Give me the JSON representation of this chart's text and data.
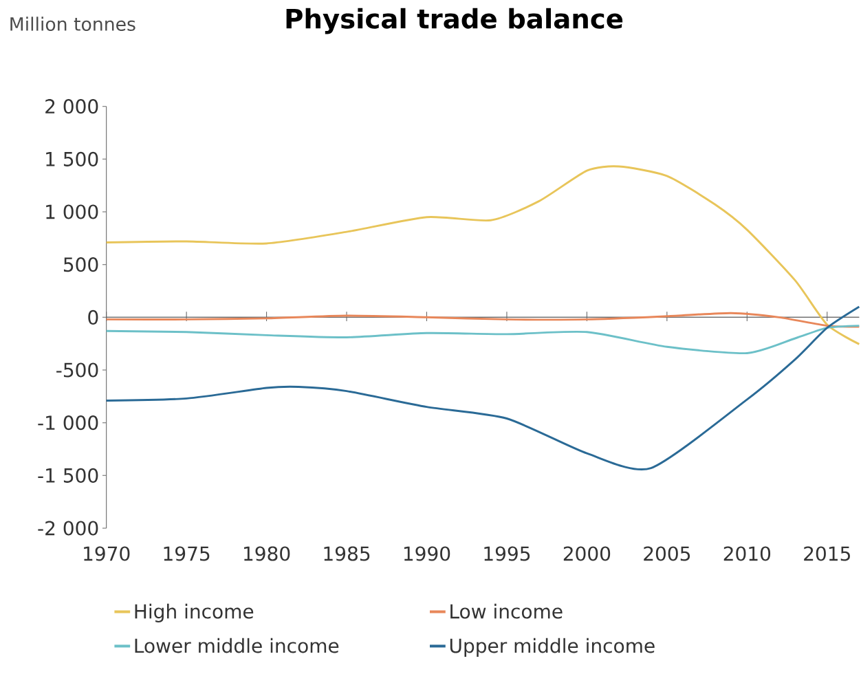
{
  "chart_data": {
    "type": "line",
    "title": "Physical trade balance",
    "ylabel": "Million tonnes",
    "xlim": [
      1970,
      2017
    ],
    "xticks": [
      1970,
      1975,
      1980,
      1985,
      1990,
      1995,
      2000,
      2005,
      2010,
      2015
    ],
    "ylim": [
      -2000,
      2000
    ],
    "yticks": [
      {
        "value": 2000,
        "label": "2 000"
      },
      {
        "value": 1500,
        "label": "1 500"
      },
      {
        "value": 1000,
        "label": "1 000"
      },
      {
        "value": 500,
        "label": "500"
      },
      {
        "value": 0,
        "label": "0"
      },
      {
        "value": -500,
        "label": "-500"
      },
      {
        "value": -1000,
        "label": "-1 000"
      },
      {
        "value": -1500,
        "label": "-1 500"
      },
      {
        "value": -2000,
        "label": "-2 000"
      }
    ],
    "legend": "bottom",
    "series": [
      {
        "name": "High income",
        "color": "#e8c55a",
        "x": [
          1970,
          1975,
          1980,
          1985,
          1990,
          1994,
          1997,
          2000,
          2002,
          2005,
          2008,
          2010,
          2013,
          2015,
          2017
        ],
        "values": [
          710,
          720,
          700,
          810,
          950,
          920,
          1100,
          1390,
          1430,
          1340,
          1070,
          830,
          350,
          -70,
          -255
        ]
      },
      {
        "name": "Low income",
        "color": "#e8875a",
        "x": [
          1970,
          1975,
          1980,
          1985,
          1990,
          1995,
          2000,
          2005,
          2009,
          2012,
          2015,
          2017
        ],
        "values": [
          -20,
          -20,
          -10,
          15,
          0,
          -20,
          -20,
          10,
          40,
          0,
          -80,
          -90
        ]
      },
      {
        "name": "Lower middle income",
        "color": "#6cc0c8",
        "x": [
          1970,
          1975,
          1980,
          1985,
          1990,
          1995,
          2000,
          2005,
          2010,
          2013,
          2015,
          2017
        ],
        "values": [
          -130,
          -140,
          -170,
          -190,
          -150,
          -160,
          -140,
          -280,
          -340,
          -200,
          -100,
          -80
        ]
      },
      {
        "name": "Upper middle income",
        "color": "#2a6a96",
        "x": [
          1970,
          1975,
          1980,
          1982,
          1985,
          1990,
          1995,
          2000,
          2004,
          2010,
          2013,
          2015,
          2017
        ],
        "values": [
          -790,
          -770,
          -670,
          -660,
          -700,
          -850,
          -960,
          -1290,
          -1430,
          -780,
          -400,
          -100,
          100
        ]
      }
    ]
  }
}
